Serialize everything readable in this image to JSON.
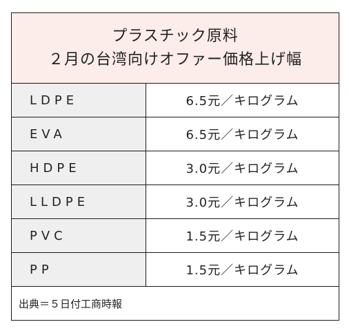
{
  "title": {
    "line1": "プラスチック原料",
    "line2": "２月の台湾向けオファー価格上げ幅"
  },
  "rows": [
    {
      "material": "LDPE",
      "increase": "6.5元／キログラム"
    },
    {
      "material": "EVA",
      "increase": "6.5元／キログラム"
    },
    {
      "material": "HDPE",
      "increase": "3.0元／キログラム"
    },
    {
      "material": "LLDPE",
      "increase": "3.0元／キログラム"
    },
    {
      "material": "PVC",
      "increase": "1.5元／キログラム"
    },
    {
      "material": "PP",
      "increase": "1.5元／キログラム"
    }
  ],
  "source": "出典＝５日付工商時報",
  "colors": {
    "title_background": "#fcecea",
    "name_cell_background": "#efefef",
    "border": "#1a1a1a"
  }
}
